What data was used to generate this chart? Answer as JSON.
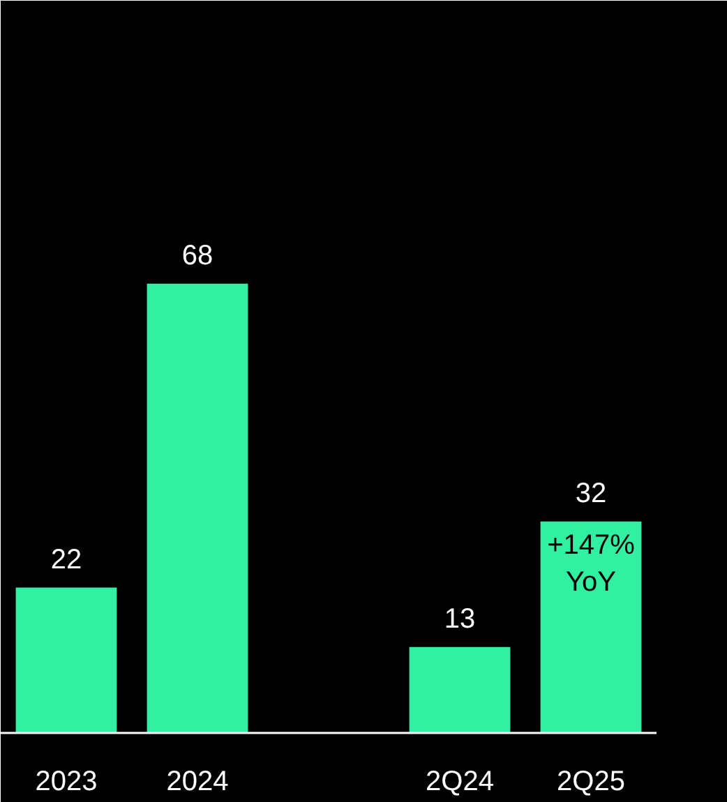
{
  "chart_data": {
    "type": "bar",
    "categories": [
      "2023",
      "2024",
      null,
      "2Q24",
      "2Q25"
    ],
    "values": [
      22,
      68,
      null,
      13,
      32
    ],
    "color": "#32f0a2",
    "data_labels": true,
    "grid": false,
    "annotations": [
      "+147%\nYoY"
    ]
  }
}
